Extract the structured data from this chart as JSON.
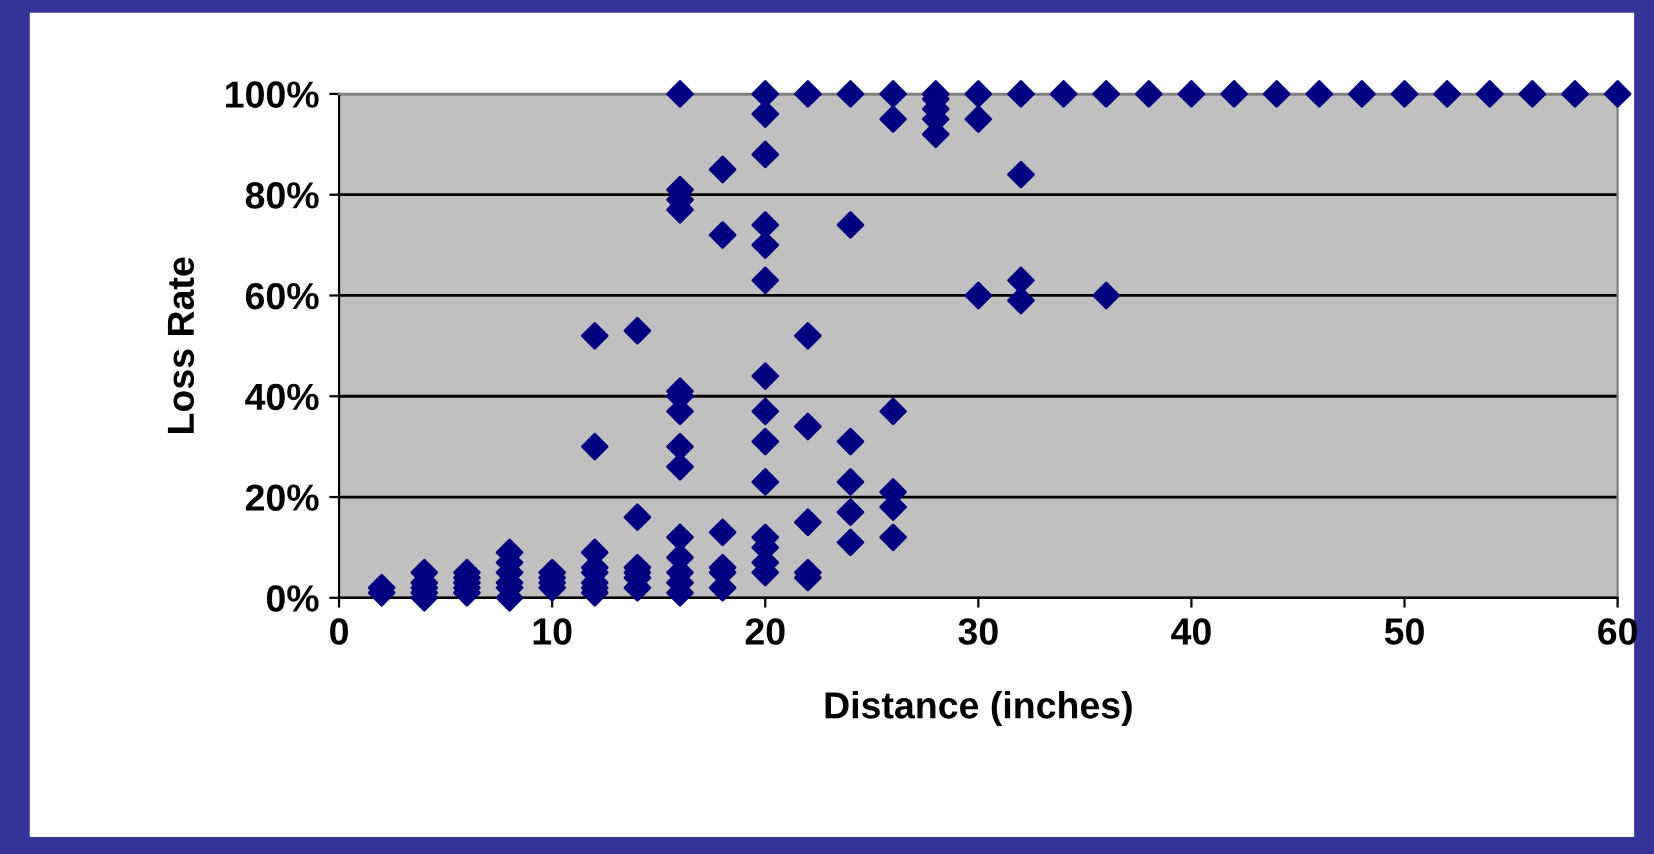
{
  "chart_data": {
    "type": "scatter",
    "xlabel": "Distance (inches)",
    "ylabel": "Loss Rate",
    "x": [
      2,
      2,
      4,
      4,
      4,
      4,
      4,
      6,
      6,
      6,
      6,
      6,
      8,
      8,
      8,
      8,
      8,
      8,
      10,
      10,
      10,
      10,
      12,
      12,
      12,
      12,
      12,
      12,
      12,
      12,
      14,
      14,
      14,
      14,
      14,
      14,
      16,
      16,
      16,
      16,
      16,
      16,
      16,
      16,
      16,
      16,
      16,
      16,
      16,
      16,
      18,
      18,
      18,
      18,
      18,
      18,
      20,
      20,
      20,
      20,
      20,
      20,
      20,
      20,
      20,
      20,
      20,
      20,
      20,
      20,
      22,
      22,
      22,
      22,
      22,
      22,
      24,
      24,
      24,
      24,
      24,
      24,
      26,
      26,
      26,
      26,
      26,
      26,
      28,
      28,
      28,
      28,
      28,
      30,
      30,
      30,
      32,
      32,
      32,
      32,
      34,
      36,
      36,
      38,
      40,
      42,
      44,
      46,
      48,
      50,
      52,
      54,
      56,
      58,
      60
    ],
    "series": [
      {
        "color": "#000080",
        "values": [
          1,
          2,
          0,
          1,
          2,
          3,
          5,
          1,
          2,
          3,
          4,
          5,
          0,
          2,
          3,
          5,
          7,
          9,
          2,
          3,
          4,
          5,
          1,
          2,
          3,
          5,
          6,
          9,
          30,
          52,
          2,
          4,
          5,
          6,
          16,
          53,
          1,
          3,
          5,
          8,
          12,
          26,
          30,
          37,
          40,
          41,
          77,
          79,
          81,
          100,
          2,
          5,
          6,
          13,
          72,
          85,
          5,
          7,
          10,
          12,
          23,
          31,
          37,
          44,
          63,
          70,
          74,
          88,
          96,
          100,
          4,
          5,
          15,
          34,
          52,
          100,
          11,
          17,
          23,
          31,
          74,
          100,
          12,
          18,
          21,
          37,
          95,
          100,
          92,
          95,
          97,
          99,
          100,
          60,
          95,
          100,
          59,
          63,
          84,
          100,
          100,
          60,
          100,
          100,
          100,
          100,
          100,
          100,
          100,
          100,
          100,
          100,
          100,
          100,
          100
        ]
      }
    ],
    "xlim": [
      0,
      60
    ],
    "xticks": [
      0,
      10,
      20,
      30,
      40,
      50,
      60
    ],
    "ylim": [
      0,
      100
    ],
    "yticks": [
      {
        "value": 0,
        "label": "0%"
      },
      {
        "value": 20,
        "label": "20%"
      },
      {
        "value": 40,
        "label": "40%"
      },
      {
        "value": 60,
        "label": "60%"
      },
      {
        "value": 80,
        "label": "80%"
      },
      {
        "value": 100,
        "label": "100%"
      }
    ],
    "grid": "y",
    "marker": "diamond",
    "legend": false
  }
}
